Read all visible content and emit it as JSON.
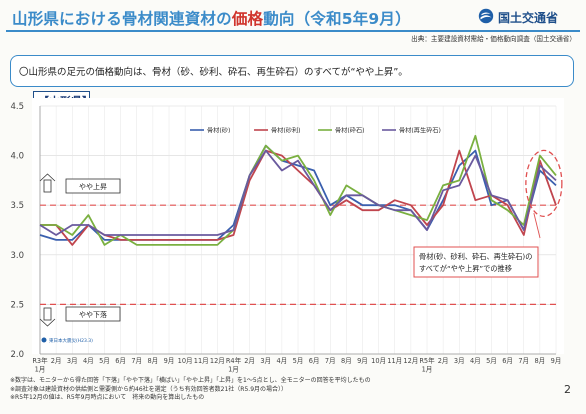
{
  "header": {
    "title_prefix": "山形県における骨材関連資材の",
    "title_highlight": "価格",
    "title_suffix": "動向（令和5年9月）",
    "ministry": "国土交通省",
    "source": "出典：主要建設資材需給・価格動向調査（国土交通省）"
  },
  "summary": "〇山形県の足元の価格動向は、骨材（砂、砂利、砕石、再生砕石）のすべてが“やや上昇”。",
  "region_label": "【山形県】",
  "notes": [
    "※数字は、モニターから得た回答「下落」「やや下落」「横ばい」「やや上昇」「上昇」を1～5点とし、全モニターの回答を平均したもの",
    "※調査対象は建設資材の供給側と需要側から約46社を選定（うち有効回答者数21社（R5.9月の場合））",
    "※R5年12月の値は、R5年9月時点において　将来の動向を算出したもの"
  ],
  "page_number": "2",
  "colors": {
    "sand": "#3a5fae",
    "gravel": "#c0454e",
    "crushed": "#7ab040",
    "recycled": "#6a5a9e",
    "threshold": "#e05050",
    "title_blue": "#3b8bc9"
  },
  "annotations": {
    "up_label": "やや上昇",
    "down_label": "やや下落",
    "quake_marker": "東日本大震災(H23.3)",
    "trend_note_line1": "骨材(砂、砂利、砕石、再生砕石)の",
    "trend_note_line2": "すべてが“やや上昇”での推移"
  },
  "chart_data": {
    "type": "line",
    "title": "",
    "xlabel": "",
    "ylabel": "",
    "ylim": [
      2.0,
      4.5
    ],
    "yticks": [
      "2.0",
      "2.5",
      "3.0",
      "3.5",
      "4.0",
      "4.5"
    ],
    "thresholds": [
      3.5,
      2.5
    ],
    "grid": true,
    "legend_placement": "top-center",
    "categories": [
      "R3年1月",
      "2月",
      "3月",
      "4月",
      "5月",
      "6月",
      "7月",
      "8月",
      "9月",
      "10月",
      "11月",
      "12月",
      "R4年1月",
      "2月",
      "3月",
      "4月",
      "5月",
      "6月",
      "7月",
      "8月",
      "9月",
      "10月",
      "11月",
      "12月",
      "R5年1月",
      "2月",
      "3月",
      "4月",
      "5月",
      "6月",
      "7月",
      "8月",
      "9月"
    ],
    "tick_labels": [
      [
        "R3年",
        "1月"
      ],
      [
        "2月"
      ],
      [
        "3月"
      ],
      [
        "4月"
      ],
      [
        "5月"
      ],
      [
        "6月"
      ],
      [
        "7月"
      ],
      [
        "8月"
      ],
      [
        "9月"
      ],
      [
        "10月"
      ],
      [
        "11月"
      ],
      [
        "12月"
      ],
      [
        "R4年",
        "1月"
      ],
      [
        "2月"
      ],
      [
        "3月"
      ],
      [
        "4月"
      ],
      [
        "5月"
      ],
      [
        "6月"
      ],
      [
        "7月"
      ],
      [
        "8月"
      ],
      [
        "9月"
      ],
      [
        "10月"
      ],
      [
        "11月"
      ],
      [
        "12月"
      ],
      [
        "R5年",
        "1月"
      ],
      [
        "2月"
      ],
      [
        "3月"
      ],
      [
        "4月"
      ],
      [
        "5月"
      ],
      [
        "6月"
      ],
      [
        "7月"
      ],
      [
        "8月"
      ],
      [
        "9月"
      ]
    ],
    "series": [
      {
        "name": "骨材(砂)",
        "values": [
          3.2,
          3.15,
          3.15,
          3.3,
          3.15,
          3.15,
          3.15,
          3.15,
          3.15,
          3.15,
          3.15,
          3.15,
          3.3,
          3.8,
          4.1,
          3.95,
          3.9,
          3.85,
          3.5,
          3.6,
          3.5,
          3.5,
          3.5,
          3.45,
          3.25,
          3.55,
          3.9,
          4.05,
          3.5,
          3.55,
          3.25,
          3.85,
          3.7
        ]
      },
      {
        "name": "骨材(砂利)",
        "values": [
          3.3,
          3.3,
          3.1,
          3.3,
          3.2,
          3.15,
          3.15,
          3.15,
          3.15,
          3.15,
          3.15,
          3.15,
          3.2,
          3.75,
          4.05,
          4.0,
          3.85,
          3.7,
          3.45,
          3.55,
          3.45,
          3.45,
          3.55,
          3.5,
          3.3,
          3.5,
          4.05,
          3.55,
          3.6,
          3.5,
          3.2,
          3.95,
          3.5
        ]
      },
      {
        "name": "骨材(砕石)",
        "values": [
          3.3,
          3.3,
          3.2,
          3.4,
          3.1,
          3.2,
          3.1,
          3.1,
          3.1,
          3.1,
          3.1,
          3.1,
          3.25,
          3.8,
          4.1,
          3.95,
          4.0,
          3.75,
          3.4,
          3.7,
          3.6,
          3.5,
          3.45,
          3.4,
          3.35,
          3.7,
          3.75,
          4.2,
          3.55,
          3.45,
          3.3,
          4.0,
          3.8
        ]
      },
      {
        "name": "骨材(再生砕石)",
        "values": [
          3.3,
          3.2,
          3.3,
          3.3,
          3.2,
          3.2,
          3.2,
          3.2,
          3.2,
          3.2,
          3.2,
          3.2,
          3.25,
          3.8,
          4.05,
          3.85,
          3.95,
          3.7,
          3.45,
          3.6,
          3.6,
          3.5,
          3.45,
          3.45,
          3.25,
          3.65,
          3.7,
          4.0,
          3.6,
          3.55,
          3.25,
          3.9,
          3.75
        ]
      }
    ]
  }
}
